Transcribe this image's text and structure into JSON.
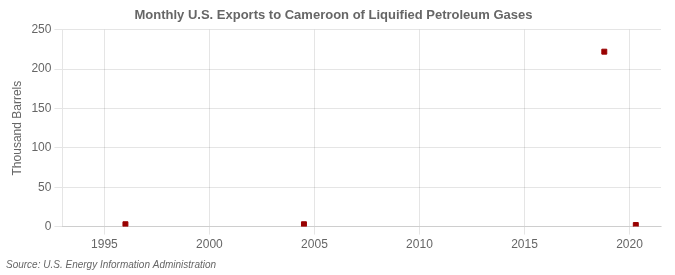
{
  "chart_data": {
    "type": "scatter",
    "title": "Monthly U.S. Exports to Cameroon of Liquified Petroleum Gases",
    "ylabel": "Thousand Barrels",
    "annotations": [
      "Source: U.S. Energy Information Administration"
    ],
    "x": [
      1996.0,
      2004.5,
      2018.8,
      2020.3
    ],
    "values": [
      3,
      3,
      222,
      2
    ],
    "color": "#990000",
    "marker": "square",
    "xlim": [
      1993.0,
      2021.5
    ],
    "ylim": [
      0,
      250
    ],
    "xticks": [
      1995,
      2000,
      2005,
      2010,
      2015,
      2020
    ],
    "yticks": [
      0,
      50,
      100,
      150,
      200,
      250
    ],
    "grid": true
  }
}
